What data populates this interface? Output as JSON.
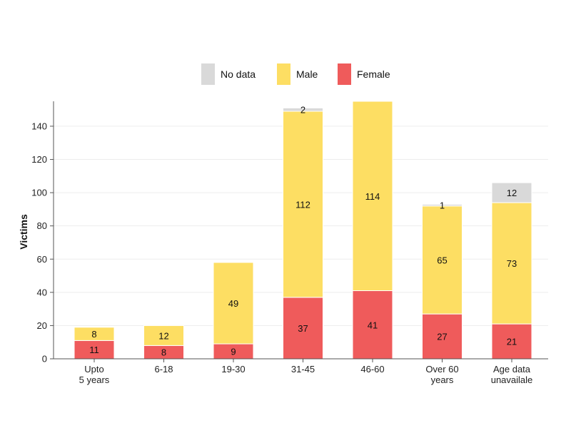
{
  "chart_data": {
    "type": "bar",
    "stacked": true,
    "ylabel": "Victims",
    "xlabel": "",
    "ylim": [
      0,
      155
    ],
    "yticks": [
      0,
      20,
      40,
      60,
      80,
      100,
      120,
      140
    ],
    "grid": true,
    "legend_position": "top",
    "categories": [
      [
        "Upto",
        "5 years"
      ],
      [
        "6-18"
      ],
      [
        "19-30"
      ],
      [
        "31-45"
      ],
      [
        "46-60"
      ],
      [
        "Over 60",
        "years"
      ],
      [
        "Age data",
        "unavailale"
      ]
    ],
    "series": [
      {
        "name": "Female",
        "color": "#EF5B5B",
        "values": [
          11,
          8,
          9,
          37,
          41,
          27,
          21
        ]
      },
      {
        "name": "Male",
        "color": "#FDDE63",
        "values": [
          8,
          12,
          49,
          112,
          114,
          65,
          73
        ]
      },
      {
        "name": "No data",
        "color": "#D9D9D9",
        "values": [
          0,
          0,
          0,
          2,
          0,
          1,
          12
        ]
      }
    ],
    "legend_order": [
      "No data",
      "Male",
      "Female"
    ]
  }
}
